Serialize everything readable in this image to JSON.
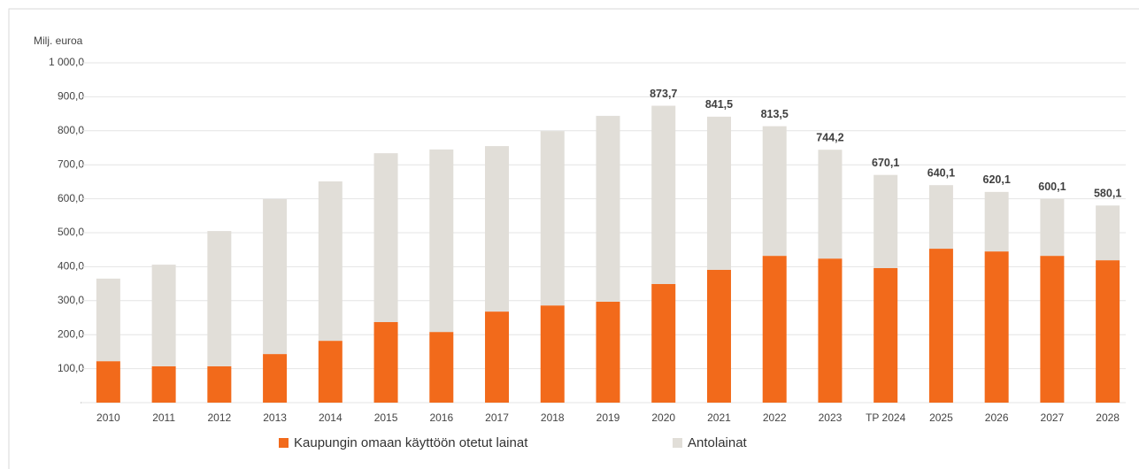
{
  "chart_data": {
    "type": "stacked-bar",
    "y_label": "Milj. euroa",
    "categories": [
      "2010",
      "2011",
      "2012",
      "2013",
      "2014",
      "2015",
      "2016",
      "2017",
      "2018",
      "2019",
      "2020",
      "2021",
      "2022",
      "2023",
      "TP 2024",
      "2025",
      "2026",
      "2027",
      "2028"
    ],
    "series": [
      {
        "name": "Kaupungin omaan käyttöön otetut lainat",
        "color": "#f26a1b",
        "values": [
          122,
          107,
          107,
          143,
          182,
          237,
          208,
          268,
          286,
          297,
          349,
          391,
          432,
          424,
          396,
          453,
          445,
          432,
          419
        ]
      },
      {
        "name": "Antolainat",
        "color": "#e1ded8",
        "values": [
          243,
          299,
          398,
          456,
          469,
          497,
          537,
          487,
          513,
          547,
          524.7,
          450.5,
          381.5,
          320.2,
          274.1,
          187.1,
          175.1,
          168.1,
          161.1
        ]
      }
    ],
    "totals": [
      null,
      null,
      null,
      null,
      null,
      null,
      null,
      null,
      null,
      null,
      873.7,
      841.5,
      813.5,
      744.2,
      670.1,
      640.1,
      620.1,
      600.1,
      580.1
    ],
    "total_labels": [
      null,
      null,
      null,
      null,
      null,
      null,
      null,
      null,
      null,
      null,
      "873,7",
      "841,5",
      "813,5",
      "744,2",
      "670,1",
      "640,1",
      "620,1",
      "600,1",
      "580,1"
    ],
    "ylim": [
      0,
      1000
    ],
    "yticks": [
      {
        "value": 0,
        "label": "-"
      },
      {
        "value": 100,
        "label": "100,0"
      },
      {
        "value": 200,
        "label": "200,0"
      },
      {
        "value": 300,
        "label": "300,0"
      },
      {
        "value": 400,
        "label": "400,0"
      },
      {
        "value": 500,
        "label": "500,0"
      },
      {
        "value": 600,
        "label": "600,0"
      },
      {
        "value": 700,
        "label": "700,0"
      },
      {
        "value": 800,
        "label": "800,0"
      },
      {
        "value": 900,
        "label": "900,0"
      },
      {
        "value": 1000,
        "label": "1 000,0"
      }
    ],
    "grid": true
  }
}
